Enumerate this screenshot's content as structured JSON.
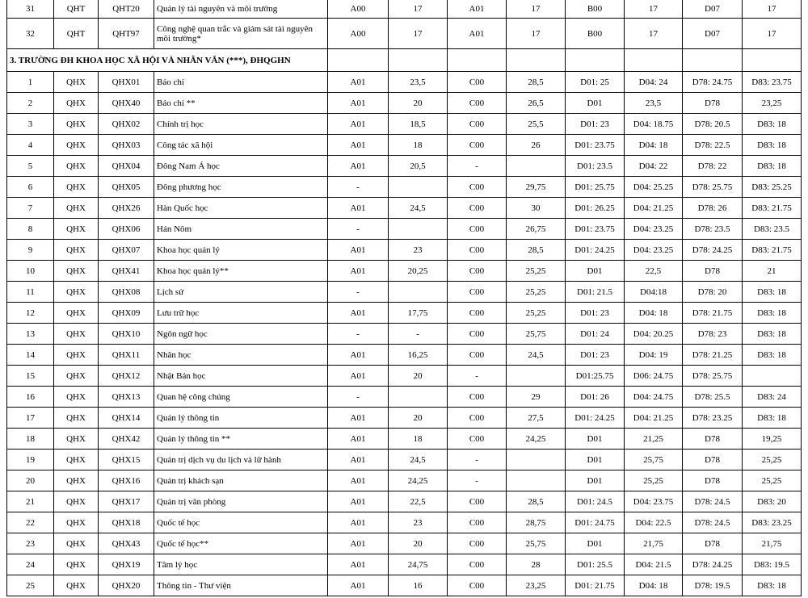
{
  "prev_rows": [
    [
      "31",
      "QHT",
      "QHT20",
      "Quản lý tài nguyên và môi trường",
      "A00",
      "17",
      "A01",
      "17",
      "B00",
      "17",
      "D07",
      "17"
    ],
    [
      "32",
      "QHT",
      "QHT97",
      "Công nghệ quan trắc và giám sát tài nguyên môi trường*",
      "A00",
      "17",
      "A01",
      "17",
      "B00",
      "17",
      "D07",
      "17"
    ]
  ],
  "section_title": "3. TRƯỜNG ĐH KHOA HỌC XÃ HỘI VÀ NHÂN VĂN (***), ĐHQGHN",
  "rows": [
    [
      "1",
      "QHX",
      "QHX01",
      "Báo chí",
      "A01",
      "23,5",
      "C00",
      "28,5",
      "D01: 25",
      "D04: 24",
      "D78: 24.75",
      "D83: 23.75"
    ],
    [
      "2",
      "QHX",
      "QHX40",
      "Báo chí **",
      "A01",
      "20",
      "C00",
      "26,5",
      "D01",
      "23,5",
      "D78",
      "23,25"
    ],
    [
      "3",
      "QHX",
      "QHX02",
      "Chính trị học",
      "A01",
      "18,5",
      "C00",
      "25,5",
      "D01: 23",
      "D04: 18.75",
      "D78: 20.5",
      "D83: 18"
    ],
    [
      "4",
      "QHX",
      "QHX03",
      "Công tác xã hội",
      "A01",
      "18",
      "C00",
      "26",
      "D01: 23.75",
      "D04: 18",
      "D78: 22.5",
      "D83: 18"
    ],
    [
      "5",
      "QHX",
      "QHX04",
      "Đông Nam Á học",
      "A01",
      "20,5",
      "-",
      "",
      "D01: 23.5",
      "D04: 22",
      "D78: 22",
      "D83: 18"
    ],
    [
      "6",
      "QHX",
      "QHX05",
      "Đông phương học",
      "-",
      "",
      "C00",
      "29,75",
      "D01: 25.75",
      "D04: 25.25",
      "D78: 25.75",
      "D83: 25.25"
    ],
    [
      "7",
      "QHX",
      "QHX26",
      "Hàn Quốc học",
      "A01",
      "24,5",
      "C00",
      "30",
      "D01: 26.25",
      "D04: 21.25",
      "D78: 26",
      "D83: 21.75"
    ],
    [
      "8",
      "QHX",
      "QHX06",
      "Hán Nôm",
      "-",
      "",
      "C00",
      "26,75",
      "D01: 23.75",
      "D04: 23.25",
      "D78: 23.5",
      "D83: 23.5"
    ],
    [
      "9",
      "QHX",
      "QHX07",
      "Khoa học quản lý",
      "A01",
      "23",
      "C00",
      "28,5",
      "D01: 24.25",
      "D04: 23.25",
      "D78: 24.25",
      "D83: 21.75"
    ],
    [
      "10",
      "QHX",
      "QHX41",
      "Khoa học quản lý**",
      "A01",
      "20,25",
      "C00",
      "25,25",
      "D01",
      "22,5",
      "D78",
      "21"
    ],
    [
      "11",
      "QHX",
      "QHX08",
      "Lịch sử",
      "-",
      "",
      "C00",
      "25,25",
      "D01: 21.5",
      "D04:18",
      "D78: 20",
      "D83: 18"
    ],
    [
      "12",
      "QHX",
      "QHX09",
      "Lưu trữ học",
      "A01",
      "17,75",
      "C00",
      "25,25",
      "D01: 23",
      "D04: 18",
      "D78: 21.75",
      "D83: 18"
    ],
    [
      "13",
      "QHX",
      "QHX10",
      "Ngôn ngữ học",
      "-",
      "-",
      "C00",
      "25,75",
      "D01: 24",
      "D04: 20.25",
      "D78: 23",
      "D83: 18"
    ],
    [
      "14",
      "QHX",
      "QHX11",
      "Nhân học",
      "A01",
      "16,25",
      "C00",
      "24,5",
      "D01: 23",
      "D04: 19",
      "D78: 21.25",
      "D83: 18"
    ],
    [
      "15",
      "QHX",
      "QHX12",
      "Nhật Bản học",
      "A01",
      "20",
      "-",
      "",
      "D01:25.75",
      "D06: 24.75",
      "D78: 25.75",
      ""
    ],
    [
      "16",
      "QHX",
      "QHX13",
      "Quan hệ công chúng",
      "-",
      "",
      "C00",
      "29",
      "D01: 26",
      "D04: 24.75",
      "D78: 25.5",
      "D83: 24"
    ],
    [
      "17",
      "QHX",
      "QHX14",
      "Quản lý thông tin",
      "A01",
      "20",
      "C00",
      "27,5",
      "D01: 24.25",
      "D04: 21.25",
      "D78: 23.25",
      "D83: 18"
    ],
    [
      "18",
      "QHX",
      "QHX42",
      "Quản lý thông tin **",
      "A01",
      "18",
      "C00",
      "24,25",
      "D01",
      "21,25",
      "D78",
      "19,25"
    ],
    [
      "19",
      "QHX",
      "QHX15",
      "Quản trị dịch vụ du lịch và lữ hành",
      "A01",
      "24,5",
      "-",
      "",
      "D01",
      "25,75",
      "D78",
      "25,25"
    ],
    [
      "20",
      "QHX",
      "QHX16",
      "Quản trị khách sạn",
      "A01",
      "24,25",
      "-",
      "",
      "D01",
      "25,25",
      "D78",
      "25,25"
    ],
    [
      "21",
      "QHX",
      "QHX17",
      "Quản trị văn phòng",
      "A01",
      "22,5",
      "C00",
      "28,5",
      "D01: 24.5",
      "D04: 23.75",
      "D78: 24.5",
      "D83: 20"
    ],
    [
      "22",
      "QHX",
      "QHX18",
      "Quốc tế học",
      "A01",
      "23",
      "C00",
      "28,75",
      "D01: 24.75",
      "D04: 22.5",
      "D78: 24.5",
      "D83: 23.25"
    ],
    [
      "23",
      "QHX",
      "QHX43",
      "Quốc tế học**",
      "A01",
      "20",
      "C00",
      "25,75",
      "D01",
      "21,75",
      "D78",
      "21,75"
    ],
    [
      "24",
      "QHX",
      "QHX19",
      "Tâm lý học",
      "A01",
      "24,75",
      "C00",
      "28",
      "D01: 25.5",
      "D04: 21.5",
      "D78: 24.25",
      "D83: 19.5"
    ],
    [
      "25",
      "QHX",
      "QHX20",
      "Thông tin - Thư viện",
      "A01",
      "16",
      "C00",
      "23,25",
      "D01: 21.75",
      "D04: 18",
      "D78: 19.5",
      "D83: 18"
    ]
  ]
}
